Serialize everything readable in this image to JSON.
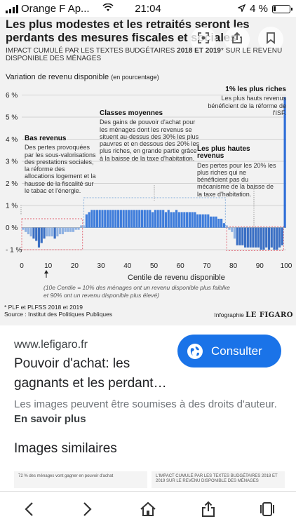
{
  "status": {
    "carrier": "Orange F Ap...",
    "time": "21:04",
    "battery": "4 %"
  },
  "figure": {
    "headline": "Les plus modestes et les retraités seront les perdants des mesures fiscales et sociales",
    "subtitle_a": "IMPACT CUMULÉ PAR LES TEXTES BUDGÉTAIRES ",
    "subtitle_b": "2018 ET 2019",
    "subtitle_c": "* SUR LE REVENU DISPONIBLE DES MÉNAGES",
    "y_title": "Variation de revenu disponible",
    "y_unit": "(en pourcentage)",
    "x_title": "Centile de revenu disponible",
    "note_1": "(10e Centile = 10% des ménages ont un revenu disponible plus faiblke",
    "note_2": "et 90% ont un revenu disponible plus élevé)",
    "source_1": "* PLF et PLFSS 2018 et 2019",
    "source_2": "Source : Institut des Politiques Publiques",
    "credit_a": "Infographie ",
    "credit_b": "LE FIGARO",
    "annotations": {
      "bas_title": "Bas revenus",
      "bas_text": "Des pertes provoquées par les sous-valorisations des prestations sociales, la réforme des allocations logement et la hausse de la fiscalité sur le tabac et l'énergie.",
      "moy_title": "Classes moyennes",
      "moy_text": "Des gains de pouvoir d'achat pour les ménages dont les revenus se situent au-dessus des 30% les plus pauvres et en dessous des 20% les plus riches, en grande partie grâce à la baisse de la taxe d'habitation.",
      "haut_title": "Les plus hautes revenus",
      "haut_text": "Des pertes pour les 20% les plus riches qui ne bénéficient pas du mécanisme de la baisse de la taxe d'habitation.",
      "riche_title": "1% les plus riches",
      "riche_text": "Les plus hauts revenus bénéficient de la réforme de l'ISF."
    }
  },
  "chart_data": {
    "type": "bar",
    "ylabel": "Variation de revenu disponible (en pourcentage)",
    "xlabel": "Centile de revenu disponible",
    "ylim": [
      -1,
      6
    ],
    "xlim": [
      0,
      100
    ],
    "y_ticks": [
      "6 %",
      "5 %",
      "4 %",
      "3 %",
      "2 %",
      "1 %",
      "0 %",
      "- 1 %"
    ],
    "y_tick_values": [
      6,
      5,
      4,
      3,
      2,
      1,
      0,
      -1
    ],
    "x_ticks": [
      "0",
      "10",
      "20",
      "30",
      "40",
      "50",
      "60",
      "70",
      "80",
      "90",
      "100"
    ],
    "x_tick_values": [
      0,
      10,
      20,
      30,
      40,
      50,
      60,
      70,
      80,
      90,
      100
    ],
    "x": [
      1,
      2,
      3,
      4,
      5,
      6,
      7,
      8,
      9,
      10,
      11,
      12,
      13,
      14,
      15,
      16,
      17,
      18,
      19,
      20,
      21,
      22,
      23,
      24,
      25,
      26,
      27,
      28,
      29,
      30,
      31,
      32,
      33,
      34,
      35,
      36,
      37,
      38,
      39,
      40,
      41,
      42,
      43,
      44,
      45,
      46,
      47,
      48,
      49,
      50,
      51,
      52,
      53,
      54,
      55,
      56,
      57,
      58,
      59,
      60,
      61,
      62,
      63,
      64,
      65,
      66,
      67,
      68,
      69,
      70,
      71,
      72,
      73,
      74,
      75,
      76,
      77,
      78,
      79,
      80,
      81,
      82,
      83,
      84,
      85,
      86,
      87,
      88,
      89,
      90,
      91,
      92,
      93,
      94,
      95,
      96,
      97,
      98,
      99,
      100
    ],
    "values": [
      -0.1,
      -0.2,
      -0.3,
      -0.4,
      -0.5,
      -0.6,
      -0.9,
      -0.7,
      -0.5,
      -0.4,
      -0.4,
      -0.4,
      -0.5,
      -0.4,
      -0.3,
      -0.3,
      -0.2,
      -0.2,
      -0.2,
      -0.2,
      -0.1,
      -0.1,
      0.1,
      0.1,
      0.6,
      0.7,
      0.8,
      0.8,
      0.8,
      0.8,
      0.8,
      0.8,
      0.8,
      0.8,
      0.8,
      0.8,
      0.8,
      0.8,
      0.8,
      0.8,
      0.8,
      0.8,
      0.8,
      0.8,
      0.8,
      0.8,
      0.8,
      0.8,
      0.8,
      0.7,
      0.8,
      0.8,
      0.8,
      0.8,
      0.7,
      0.8,
      0.7,
      0.7,
      0.8,
      0.7,
      0.7,
      0.7,
      0.7,
      0.7,
      0.7,
      0.7,
      0.6,
      0.6,
      0.6,
      0.6,
      0.6,
      0.5,
      0.5,
      0.5,
      0.4,
      0.4,
      0.2,
      0.1,
      -0.1,
      -0.2,
      -0.5,
      -0.8,
      -0.8,
      -0.8,
      -0.9,
      -0.9,
      -0.9,
      -0.9,
      -0.9,
      -0.9,
      -1.0,
      -1.0,
      -0.9,
      -1.0,
      -0.9,
      -1.0,
      -1.0,
      -0.9,
      -0.8,
      5.9
    ],
    "colors": {
      "negative": "#3a6fc4",
      "negative_light": "#8eb1e2",
      "positive": "#3f7ddb",
      "positive_light": "#9fbfe9",
      "top": "#2f6ed8"
    }
  },
  "result": {
    "domain": "www.lefigaro.fr",
    "consult_label": "Consulter",
    "title": "Pouvoir d'achat: les gagnants et les perdant…",
    "rights_text": "Les images peuvent être soumises à des droits d'auteur. ",
    "rights_link": "En savoir plus",
    "similar": "Images similaires",
    "thumb1": "72 % des ménages vont gagner en pouvoir d'achat",
    "thumb2": "L'IMPACT CUMULÉ PAR LES TEXTES BUDGÉTAIRES 2018 ET 2019 SUR LE REVENU DISPONIBLE DES MÉNAGES"
  }
}
